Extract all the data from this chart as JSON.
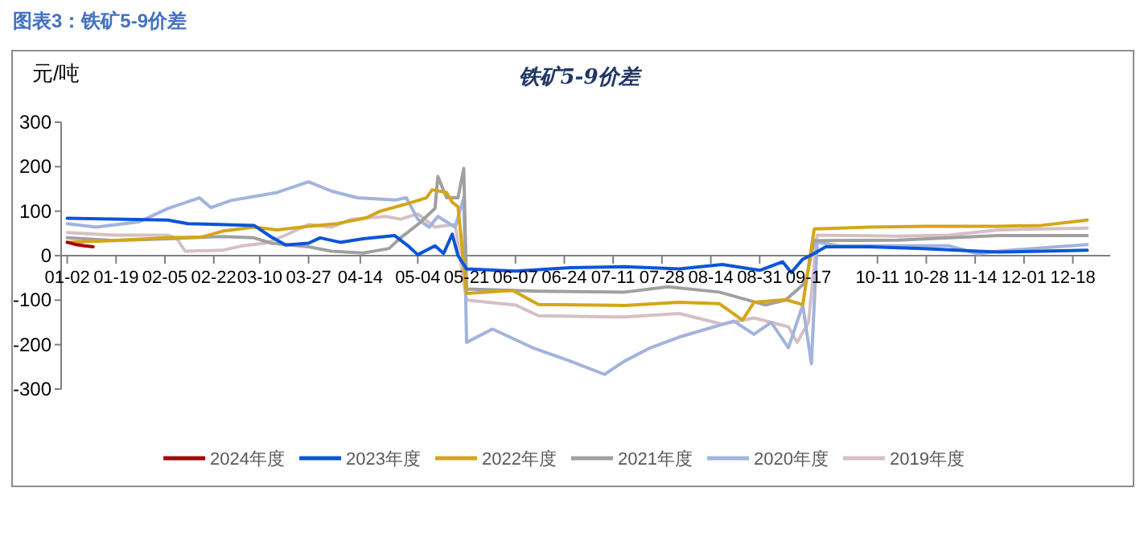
{
  "chart_data": {
    "type": "line",
    "title": "图表3：铁矿5-9价差",
    "subtitle": "铁矿5-9价差",
    "ylabel": "元/吨",
    "xlim": [
      "--01-01",
      "--12-31"
    ],
    "ylim": [
      -300,
      300
    ],
    "yticks": [
      -300,
      -200,
      -100,
      0,
      100,
      200,
      300
    ],
    "xticks": [
      {
        "value": "--01-02",
        "label": "01-02"
      },
      {
        "value": "--01-19",
        "label": "01-19"
      },
      {
        "value": "--02-05",
        "label": "02-05"
      },
      {
        "value": "--02-22",
        "label": "02-22"
      },
      {
        "value": "--03-10",
        "label": "03-10"
      },
      {
        "value": "--03-27",
        "label": "03-27"
      },
      {
        "value": "--04-14",
        "label": "04-14"
      },
      {
        "value": "--05-04",
        "label": "05-04"
      },
      {
        "value": "--05-21",
        "label": "05-21"
      },
      {
        "value": "--06-07",
        "label": "06-07"
      },
      {
        "value": "--06-24",
        "label": "06-24"
      },
      {
        "value": "--07-11",
        "label": "07-11"
      },
      {
        "value": "--07-28",
        "label": "07-28"
      },
      {
        "value": "--08-14",
        "label": "08-14"
      },
      {
        "value": "--08-31",
        "label": "08-31"
      },
      {
        "value": "--09-17",
        "label": "09-17"
      },
      {
        "value": "--10-11",
        "label": "10-11"
      },
      {
        "value": "--10-28",
        "label": "10-28"
      },
      {
        "value": "--11-14",
        "label": "11-14"
      },
      {
        "value": "--12-01",
        "label": "12-01"
      },
      {
        "value": "--12-18",
        "label": "12-18"
      }
    ],
    "legend": "bottom",
    "series": [
      {
        "name": "2024年度",
        "color": "#a50000",
        "x": [
          "--01-02",
          "--01-05",
          "--01-08",
          "--01-11"
        ],
        "values": [
          30,
          25,
          22,
          20
        ]
      },
      {
        "name": "2023年度",
        "color": "#0a55d8",
        "x": [
          "--01-02",
          "--01-18",
          "--02-06",
          "--02-13",
          "--03-08",
          "--03-14",
          "--03-19",
          "--03-27",
          "--03-31",
          "--04-07",
          "--04-15",
          "--04-26",
          "--05-01",
          "--05-04",
          "--05-10",
          "--05-13",
          "--05-16",
          "--05-18",
          "--05-21",
          "--06-07",
          "--06-26",
          "--07-15",
          "--08-03",
          "--08-18",
          "--08-31",
          "--09-08",
          "--09-11",
          "--09-15",
          "--09-19",
          "--09-23",
          "--10-08",
          "--10-27",
          "--11-15",
          "--11-22",
          "--12-07",
          "--12-23"
        ],
        "values": [
          84,
          82,
          80,
          72,
          68,
          42,
          24,
          28,
          40,
          30,
          38,
          45,
          20,
          2,
          22,
          5,
          48,
          0,
          -30,
          -35,
          -27,
          -25,
          -30,
          -20,
          -33,
          -14,
          -38,
          -8,
          5,
          20,
          20,
          16,
          10,
          8,
          10,
          12
        ]
      },
      {
        "name": "2022年度",
        "color": "#d4a617",
        "x": [
          "--01-02",
          "--01-18",
          "--02-06",
          "--02-18",
          "--02-25",
          "--03-08",
          "--03-16",
          "--03-27",
          "--04-06",
          "--04-16",
          "--04-21",
          "--05-01",
          "--05-07",
          "--05-09",
          "--05-14",
          "--05-16",
          "--05-18",
          "--05-21",
          "--06-06",
          "--06-15",
          "--07-15",
          "--08-03",
          "--08-17",
          "--08-25",
          "--08-29",
          "--09-09",
          "--09-15",
          "--09-19",
          "--10-08",
          "--10-28",
          "--11-22",
          "--12-07",
          "--12-23"
        ],
        "values": [
          30,
          34,
          40,
          42,
          55,
          64,
          58,
          66,
          72,
          85,
          100,
          118,
          130,
          148,
          142,
          120,
          110,
          -85,
          -78,
          -110,
          -112,
          -105,
          -108,
          -145,
          -105,
          -99,
          -110,
          60,
          64,
          66,
          66,
          68,
          80
        ]
      },
      {
        "name": "2021年度",
        "color": "#a0a0a0",
        "x": [
          "--01-02",
          "--01-18",
          "--02-06",
          "--02-25",
          "--03-08",
          "--03-14",
          "--03-27",
          "--04-04",
          "--04-15",
          "--04-24",
          "--04-28",
          "--05-04",
          "--05-10",
          "--05-11",
          "--05-14",
          "--05-18",
          "--05-20",
          "--05-21",
          "--06-15",
          "--07-15",
          "--07-30",
          "--08-17",
          "--09-02",
          "--09-09",
          "--09-16",
          "--09-19",
          "--10-18",
          "--11-22",
          "--12-23"
        ],
        "values": [
          40,
          34,
          38,
          43,
          40,
          28,
          20,
          10,
          6,
          16,
          40,
          70,
          106,
          178,
          130,
          130,
          196,
          -75,
          -80,
          -82,
          -70,
          -82,
          -111,
          -100,
          -60,
          34,
          35,
          45,
          45
        ]
      },
      {
        "name": "2020年度",
        "color": "#a3b3dd",
        "x": [
          "--01-02",
          "--01-12",
          "--01-27",
          "--02-06",
          "--02-17",
          "--02-21",
          "--02-28",
          "--03-16",
          "--03-27",
          "--04-04",
          "--04-13",
          "--04-26",
          "--04-30",
          "--05-04",
          "--05-08",
          "--05-11",
          "--05-17",
          "--05-20",
          "--05-21",
          "--05-30",
          "--06-13",
          "--06-26",
          "--07-08",
          "--07-15",
          "--07-24",
          "--08-03",
          "--08-22",
          "--08-29",
          "--09-04",
          "--09-10",
          "--09-15",
          "--09-18",
          "--09-20",
          "--09-28",
          "--11-05",
          "--11-15",
          "--11-22",
          "--12-23"
        ],
        "values": [
          72,
          64,
          76,
          106,
          130,
          108,
          124,
          142,
          166,
          145,
          130,
          125,
          130,
          82,
          64,
          88,
          64,
          130,
          -195,
          -165,
          -207,
          -237,
          -267,
          -237,
          -207,
          -183,
          -147,
          -177,
          -150,
          -207,
          -111,
          -243,
          30,
          22,
          22,
          4,
          10,
          25
        ]
      },
      {
        "name": "2019年度",
        "color": "#d5c0c4",
        "x": [
          "--01-02",
          "--01-18",
          "--02-06",
          "--02-09",
          "--02-12",
          "--02-25",
          "--03-04",
          "--03-12",
          "--03-19",
          "--03-27",
          "--04-04",
          "--04-11",
          "--04-23",
          "--04-28",
          "--05-04",
          "--05-10",
          "--05-17",
          "--05-21",
          "--06-07",
          "--06-15",
          "--07-15",
          "--08-03",
          "--08-18",
          "--08-29",
          "--09-10",
          "--09-13",
          "--09-17",
          "--09-20",
          "--10-18",
          "--11-05",
          "--11-22",
          "--12-23"
        ],
        "values": [
          52,
          46,
          46,
          40,
          10,
          12,
          22,
          28,
          46,
          70,
          64,
          82,
          88,
          82,
          94,
          64,
          70,
          -100,
          -111,
          -135,
          -138,
          -130,
          -154,
          -140,
          -160,
          -195,
          -150,
          46,
          44,
          46,
          58,
          62
        ]
      }
    ]
  }
}
